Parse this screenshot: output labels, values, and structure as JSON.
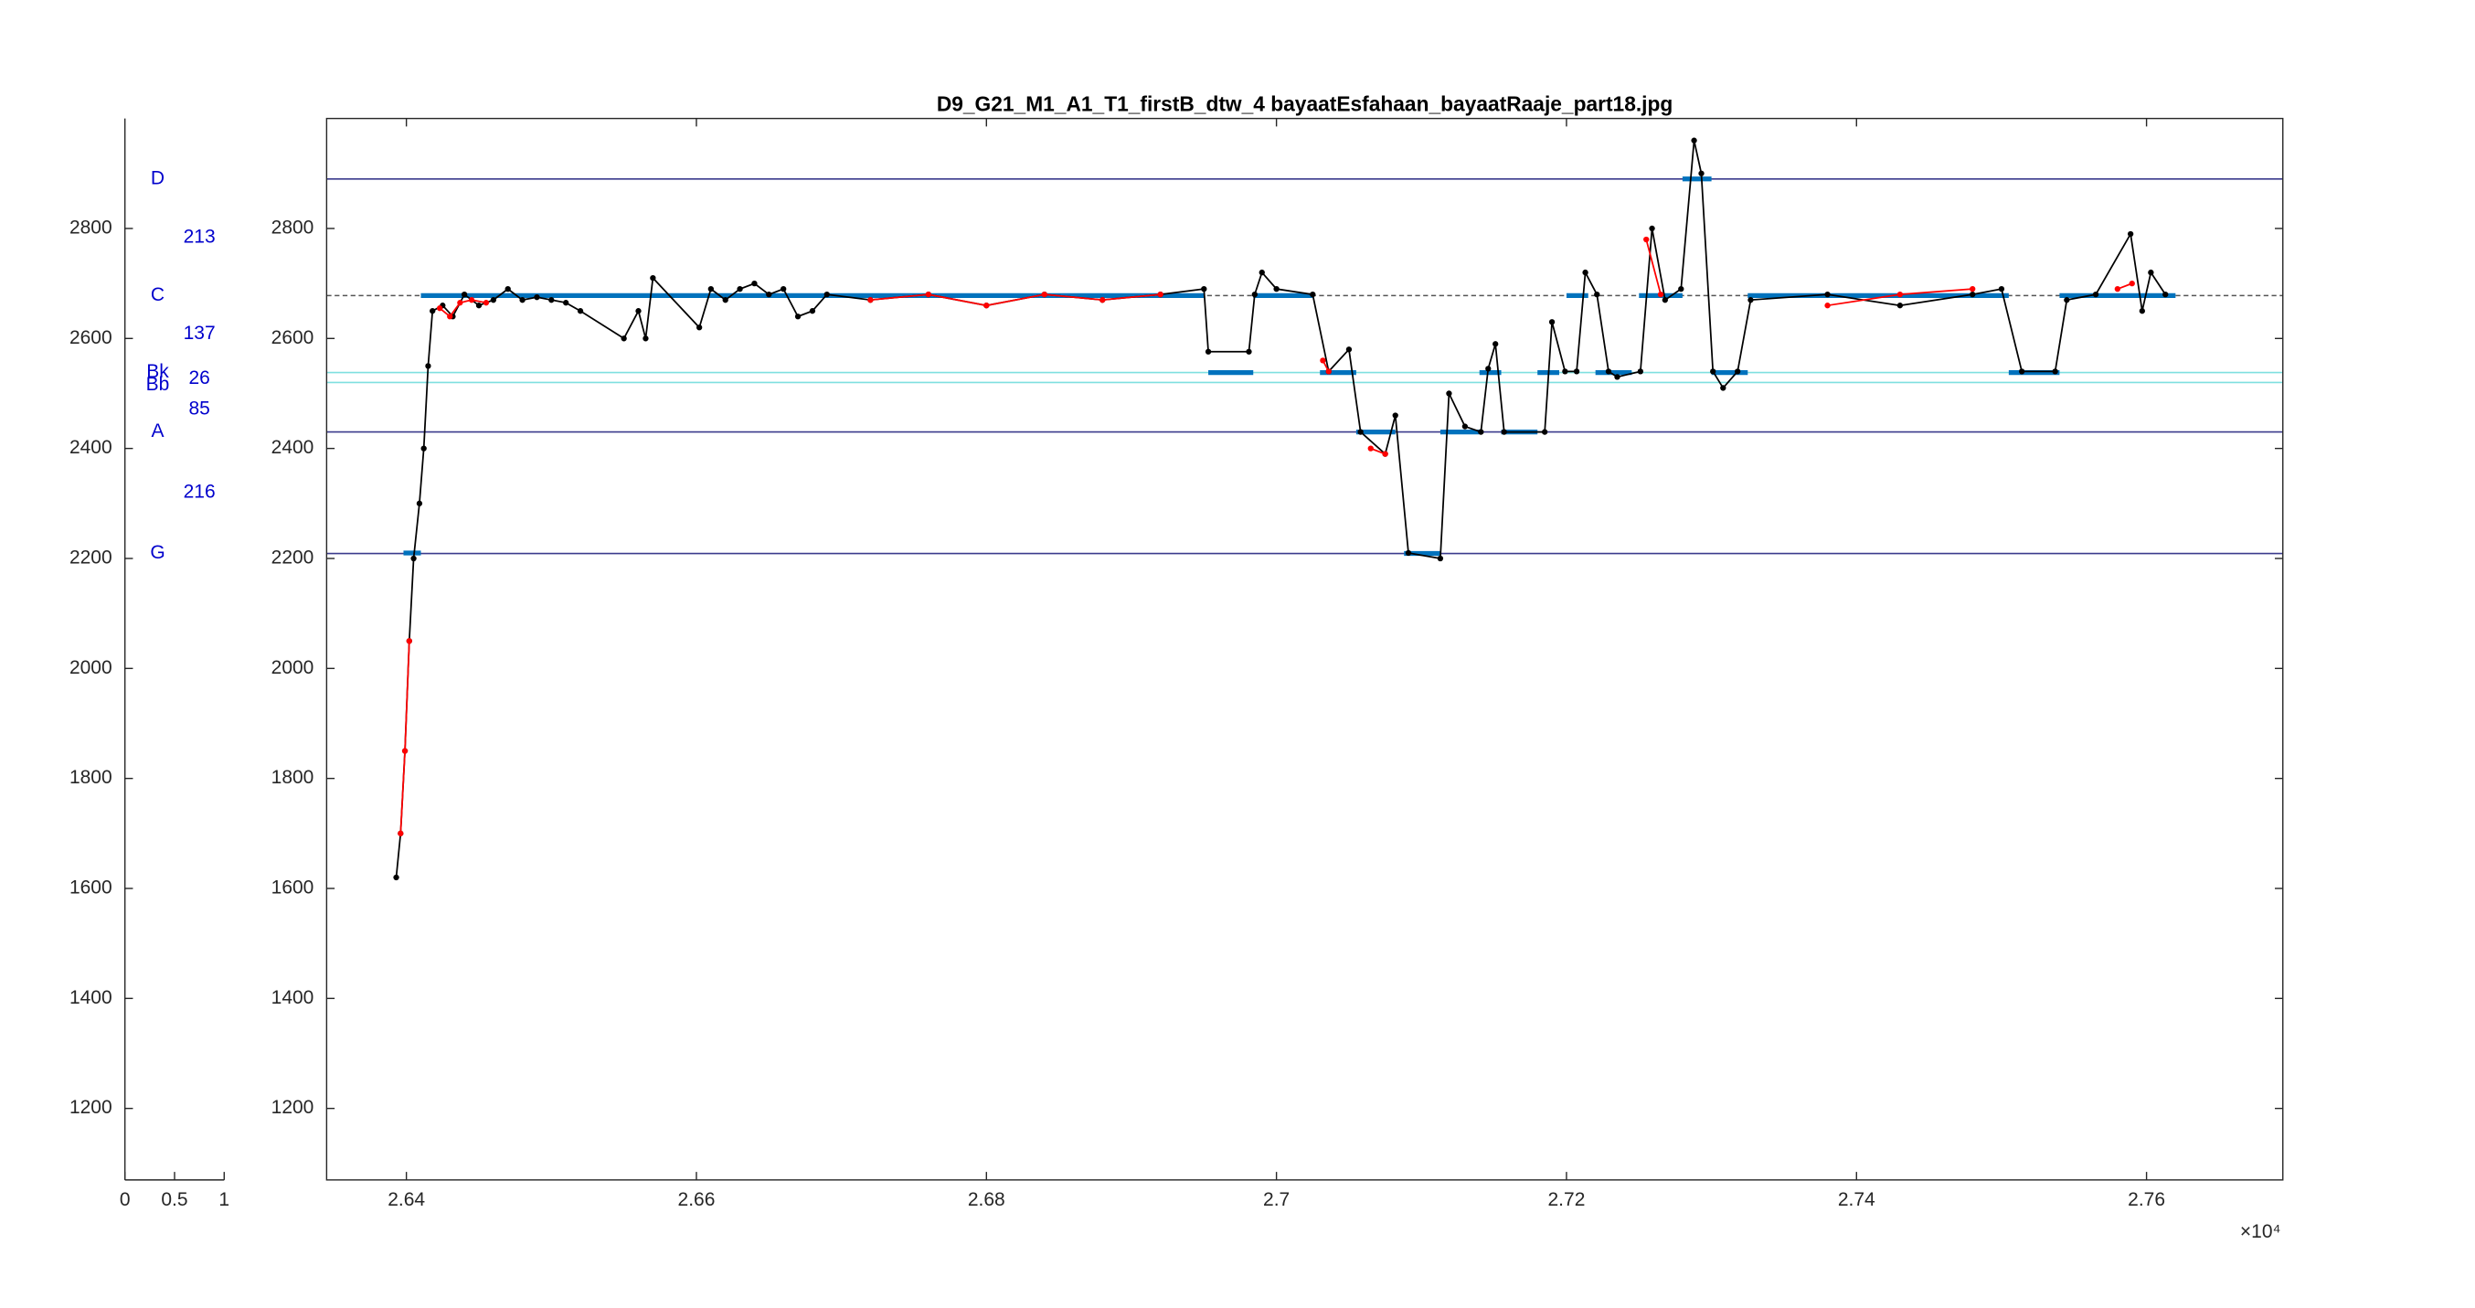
{
  "chart_data": [
    {
      "type": "text",
      "xlim": [
        0,
        1
      ],
      "xticks": [
        0,
        0.5,
        1
      ],
      "ylim": [
        1070,
        3000
      ],
      "yticks": [
        1200,
        1400,
        1600,
        1800,
        2000,
        2200,
        2400,
        2600,
        2800
      ],
      "color": "#0000cc",
      "notes": [
        {
          "label": "D",
          "y": 2890
        },
        {
          "label": "C",
          "y": 2678
        },
        {
          "label": "Bk",
          "y": 2538
        },
        {
          "label": "Bb",
          "y": 2515
        },
        {
          "label": "A",
          "y": 2430
        },
        {
          "label": "G",
          "y": 2209
        }
      ],
      "intervals": [
        {
          "value": 213,
          "y": 2783
        },
        {
          "value": 137,
          "y": 2608
        },
        {
          "value": 26,
          "y": 2527
        },
        {
          "value": 85,
          "y": 2471
        },
        {
          "value": 216,
          "y": 2320
        }
      ]
    },
    {
      "type": "line",
      "title": "D9_G21_M1_A1_T1_firstB_dtw_4 bayaatEsfahaan_bayaatRaaje_part18.jpg",
      "x_multiplier": "×10⁴",
      "xlim": [
        26345,
        27694
      ],
      "xticks": [
        {
          "value": 26400,
          "label": "2.64"
        },
        {
          "value": 26600,
          "label": "2.66"
        },
        {
          "value": 26800,
          "label": "2.68"
        },
        {
          "value": 27000,
          "label": "2.7"
        },
        {
          "value": 27200,
          "label": "2.72"
        },
        {
          "value": 27400,
          "label": "2.74"
        },
        {
          "value": 27600,
          "label": "2.76"
        }
      ],
      "ylim": [
        1070,
        3000
      ],
      "yticks": [
        1200,
        1400,
        1600,
        1800,
        2000,
        2200,
        2400,
        2600,
        2800
      ],
      "hlines": [
        {
          "y": 2890,
          "color": "#3a3a8c"
        },
        {
          "y": 2678,
          "color": "#555555"
        },
        {
          "y": 2538,
          "color": "#7fdfdf"
        },
        {
          "y": 2520,
          "color": "#7fdfdf"
        },
        {
          "y": 2430,
          "color": "#3a3a8c"
        },
        {
          "y": 2209,
          "color": "#3a3a8c"
        }
      ],
      "series": [
        {
          "color": "#0072bd",
          "width": 3,
          "markers": false,
          "x": [
            26398,
            26410,
            null,
            26410,
            26950,
            null,
            26953,
            26984,
            null,
            26984,
            27025,
            null,
            27030,
            27055,
            null,
            27055,
            27082,
            null,
            27088,
            27113,
            null,
            27113,
            27140,
            null,
            27140,
            27155,
            null,
            27155,
            27180,
            null,
            27180,
            27195,
            null,
            27200,
            27215,
            null,
            27220,
            27245,
            null,
            27250,
            27280,
            null,
            27280,
            27300,
            null,
            27300,
            27325,
            null,
            27325,
            27505,
            null,
            27505,
            27540,
            null,
            27540,
            27620
          ],
          "values": [
            2210,
            2210,
            null,
            2678,
            2678,
            null,
            2538,
            2538,
            null,
            2678,
            2678,
            null,
            2538,
            2538,
            null,
            2430,
            2430,
            null,
            2209,
            2209,
            null,
            2430,
            2430,
            null,
            2538,
            2538,
            null,
            2430,
            2430,
            null,
            2538,
            2538,
            null,
            2678,
            2678,
            null,
            2538,
            2538,
            null,
            2678,
            2678,
            null,
            2890,
            2890,
            null,
            2538,
            2538,
            null,
            2678,
            2678,
            null,
            2538,
            2538,
            null,
            2678,
            2678
          ]
        },
        {
          "color": "#000000",
          "width": 1,
          "markers": true,
          "x": [
            26393,
            26396,
            26399,
            26402,
            26405,
            26409,
            26412,
            26415,
            26418,
            26425,
            26432,
            26440,
            26450,
            26460,
            26470,
            26480,
            26490,
            26500,
            26510,
            26520,
            26550,
            26560,
            26565,
            26570,
            26602,
            26610,
            26620,
            26630,
            26640,
            26650,
            26660,
            26670,
            26680,
            26690,
            26720,
            26760,
            26800,
            26840,
            26880,
            26920,
            26950,
            26953,
            26981,
            26985,
            26990,
            27000,
            27025,
            27036,
            27050,
            27058,
            27075,
            27082,
            27091,
            27113,
            27119,
            27130,
            27141,
            27146,
            27151,
            27157,
            27185,
            27190,
            27199,
            27207,
            27213,
            27221,
            27229,
            27235,
            27251,
            27259,
            27268,
            27279,
            27288,
            27293,
            27301,
            27308,
            27318,
            27327,
            27380,
            27430,
            27480,
            27500,
            27514,
            27537,
            27545,
            27565,
            27589,
            27597,
            27603,
            27613
          ],
          "values": [
            1620,
            1700,
            1850,
            2050,
            2200,
            2300,
            2400,
            2550,
            2650,
            2660,
            2640,
            2680,
            2660,
            2670,
            2690,
            2670,
            2675,
            2670,
            2665,
            2650,
            2600,
            2650,
            2600,
            2710,
            2620,
            2690,
            2670,
            2690,
            2700,
            2680,
            2690,
            2640,
            2650,
            2680,
            2670,
            2680,
            2660,
            2680,
            2670,
            2680,
            2690,
            2576,
            2576,
            2680,
            2720,
            2690,
            2680,
            2540,
            2580,
            2430,
            2390,
            2460,
            2210,
            2200,
            2500,
            2440,
            2430,
            2545,
            2590,
            2430,
            2430,
            2630,
            2540,
            2540,
            2720,
            2680,
            2540,
            2530,
            2540,
            2800,
            2670,
            2690,
            2960,
            2900,
            2540,
            2510,
            2540,
            2670,
            2680,
            2660,
            2680,
            2690,
            2540,
            2540,
            2670,
            2680,
            2790,
            2650,
            2720,
            2680
          ]
        },
        {
          "color": "#ff0000",
          "width": 1,
          "markers": true,
          "x": [
            26396,
            26399,
            26402,
            null,
            26423,
            26430,
            26437,
            26445,
            26455,
            null,
            26720,
            26760,
            26800,
            26840,
            26880,
            26920,
            null,
            27032,
            27036,
            null,
            27065,
            27075,
            null,
            27255,
            27265,
            null,
            27380,
            27430,
            27480,
            null,
            27580,
            27590
          ],
          "values": [
            1700,
            1850,
            2050,
            null,
            2655,
            2640,
            2665,
            2670,
            2665,
            null,
            2670,
            2680,
            2660,
            2680,
            2670,
            2680,
            null,
            2560,
            2540,
            null,
            2400,
            2390,
            null,
            2780,
            2680,
            null,
            2660,
            2680,
            2690,
            null,
            2690,
            2700
          ]
        }
      ]
    }
  ]
}
